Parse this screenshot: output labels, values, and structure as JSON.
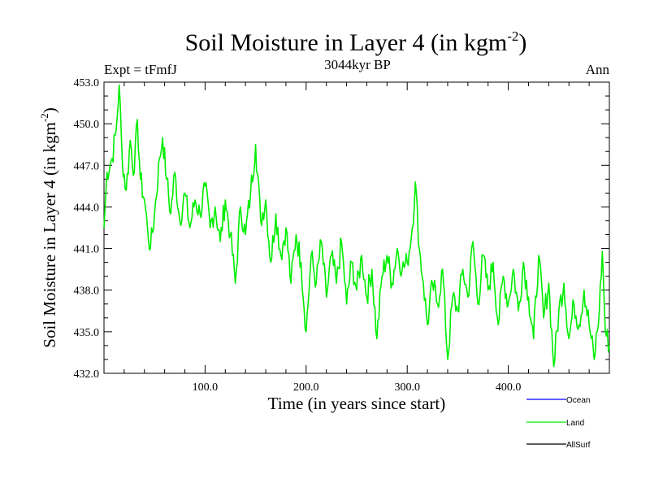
{
  "chart_data": {
    "type": "line",
    "title": "Soil Moisture in Layer 4 (in kgm",
    "title_sup": "-2",
    "title_close": ")",
    "left_label": "Expt = tFmfJ",
    "center_label": "3044kyr BP",
    "right_label": "Ann",
    "xlabel": "Time (in years since start)",
    "ylabel": "Soil Moisture in Layer 4 (in kgm",
    "ylabel_sup": "-2",
    "ylabel_close": ")",
    "xlim": [
      0,
      500
    ],
    "ylim": [
      432.0,
      453.0
    ],
    "x_ticks": [
      100,
      200,
      300,
      400
    ],
    "x_tick_labels": [
      "100.0",
      "200.0",
      "300.0",
      "400.0"
    ],
    "y_ticks": [
      432,
      435,
      438,
      441,
      444,
      447,
      450,
      453
    ],
    "y_tick_labels": [
      "432.0",
      "435.0",
      "438.0",
      "441.0",
      "444.0",
      "447.0",
      "450.0",
      "453.0"
    ],
    "legend": {
      "position": "bottom-right",
      "entries": [
        {
          "name": "Ocean",
          "color": "#0000ff"
        },
        {
          "name": "Land",
          "color": "#00ee00"
        },
        {
          "name": "AllSurf",
          "color": "#000000"
        }
      ]
    },
    "series": [
      {
        "name": "Land",
        "color": "#00ee00",
        "anchors": [
          [
            0,
            442.5
          ],
          [
            3,
            446.5
          ],
          [
            8,
            447.5
          ],
          [
            12,
            449.5
          ],
          [
            15,
            452.8
          ],
          [
            18,
            447.5
          ],
          [
            22,
            445.2
          ],
          [
            26,
            448.8
          ],
          [
            30,
            446.5
          ],
          [
            33,
            450.3
          ],
          [
            36,
            446.0
          ],
          [
            40,
            444.5
          ],
          [
            43,
            442.5
          ],
          [
            46,
            441.0
          ],
          [
            50,
            443.5
          ],
          [
            55,
            447.5
          ],
          [
            58,
            449.0
          ],
          [
            62,
            446.0
          ],
          [
            66,
            443.5
          ],
          [
            70,
            446.5
          ],
          [
            75,
            443.0
          ],
          [
            80,
            445.0
          ],
          [
            85,
            442.5
          ],
          [
            90,
            444.5
          ],
          [
            95,
            443.5
          ],
          [
            100,
            445.5
          ],
          [
            105,
            442.5
          ],
          [
            110,
            444.0
          ],
          [
            115,
            441.5
          ],
          [
            120,
            444.5
          ],
          [
            125,
            442.0
          ],
          [
            130,
            438.5
          ],
          [
            135,
            444.0
          ],
          [
            140,
            442.0
          ],
          [
            145,
            445.0
          ],
          [
            150,
            448.5
          ],
          [
            155,
            443.0
          ],
          [
            160,
            444.5
          ],
          [
            165,
            440.0
          ],
          [
            170,
            443.5
          ],
          [
            175,
            440.5
          ],
          [
            180,
            442.5
          ],
          [
            185,
            438.5
          ],
          [
            190,
            442.0
          ],
          [
            195,
            440.0
          ],
          [
            200,
            435.0
          ],
          [
            205,
            440.5
          ],
          [
            210,
            438.5
          ],
          [
            215,
            441.5
          ],
          [
            220,
            437.5
          ],
          [
            225,
            440.5
          ],
          [
            230,
            438.5
          ],
          [
            235,
            441.5
          ],
          [
            240,
            437.0
          ],
          [
            245,
            440.0
          ],
          [
            250,
            438.0
          ],
          [
            255,
            440.5
          ],
          [
            260,
            437.5
          ],
          [
            265,
            439.5
          ],
          [
            270,
            434.5
          ],
          [
            275,
            439.0
          ],
          [
            280,
            440.5
          ],
          [
            285,
            438.5
          ],
          [
            290,
            441.0
          ],
          [
            295,
            439.5
          ],
          [
            300,
            440.0
          ],
          [
            305,
            442.5
          ],
          [
            308,
            445.8
          ],
          [
            312,
            441.0
          ],
          [
            316,
            438.5
          ],
          [
            320,
            435.5
          ],
          [
            325,
            438.5
          ],
          [
            330,
            437.0
          ],
          [
            335,
            439.5
          ],
          [
            340,
            433.0
          ],
          [
            345,
            437.5
          ],
          [
            350,
            436.5
          ],
          [
            355,
            439.5
          ],
          [
            360,
            437.5
          ],
          [
            365,
            441.5
          ],
          [
            370,
            437.0
          ],
          [
            375,
            440.5
          ],
          [
            380,
            438.0
          ],
          [
            385,
            440.0
          ],
          [
            390,
            435.5
          ],
          [
            395,
            439.0
          ],
          [
            400,
            437.0
          ],
          [
            405,
            439.5
          ],
          [
            410,
            436.5
          ],
          [
            415,
            440.0
          ],
          [
            420,
            437.5
          ],
          [
            425,
            434.5
          ],
          [
            430,
            440.5
          ],
          [
            435,
            436.0
          ],
          [
            440,
            438.5
          ],
          [
            445,
            432.5
          ],
          [
            450,
            436.5
          ],
          [
            455,
            438.5
          ],
          [
            460,
            434.5
          ],
          [
            465,
            437.0
          ],
          [
            470,
            435.5
          ],
          [
            475,
            438.0
          ],
          [
            480,
            435.5
          ],
          [
            485,
            433.0
          ],
          [
            490,
            436.5
          ],
          [
            493,
            440.8
          ],
          [
            496,
            435.0
          ],
          [
            500,
            434.0
          ]
        ]
      }
    ]
  }
}
